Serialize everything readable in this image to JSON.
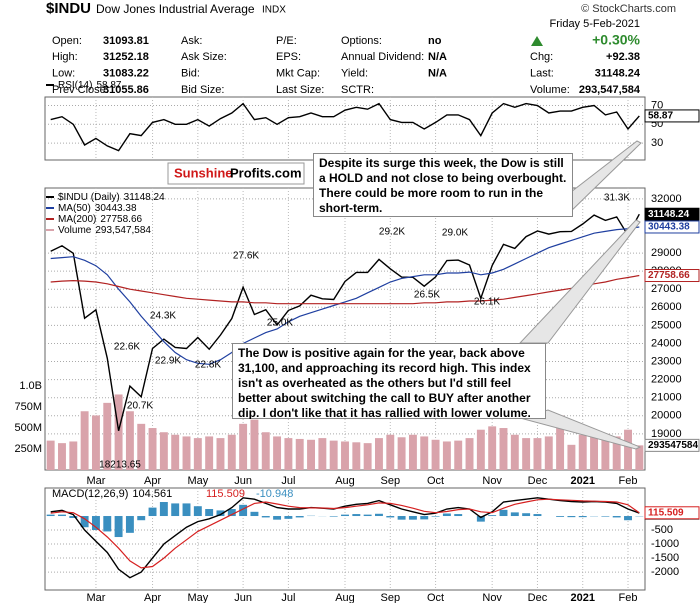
{
  "quote": {
    "symbol": "$INDU",
    "name": "Dow Jones Industrial Average",
    "exchange": "INDX",
    "date": "Friday  5-Feb-2021",
    "source": "© StockCharts.com",
    "change_pct": "+0.30%",
    "rows": [
      [
        {
          "label": "Open:",
          "value": 31093.81
        },
        {
          "label": "Ask:"
        },
        {
          "label": "P/E:"
        },
        {
          "label": "Options:",
          "value": "no"
        }
      ],
      [
        {
          "label": "High:",
          "value": 31252.18
        },
        {
          "label": "Ask Size:"
        },
        {
          "label": "EPS:"
        },
        {
          "label": "Annual Dividend:",
          "value": "N/A"
        },
        {
          "label": "Chg:",
          "value": "+92.38"
        }
      ],
      [
        {
          "label": "Low:",
          "value": 31083.22
        },
        {
          "label": "Bid:"
        },
        {
          "label": "Mkt Cap:"
        },
        {
          "label": "Yield:",
          "value": "N/A"
        },
        {
          "label": "Last:",
          "value": 31148.24
        }
      ],
      [
        {
          "label": "Prev Close:",
          "value": 31055.86
        },
        {
          "label": "Bid Size:"
        },
        {
          "label": "Last Size:"
        },
        {
          "label": "SCTR:"
        },
        {
          "label": "Volume:",
          "value": "293,547,584"
        }
      ]
    ]
  },
  "logo": {
    "part1": "Sunshine",
    "part2": "Profits.com"
  },
  "callouts": [
    "Despite its surge this week, the Dow is still a HOLD and not close to being overbought. There could be more room to run in the short-term.",
    "The Dow is positive again for the year, back above 31,100, and approaching its record high. This index isn't as overheated as the others but I'd still feel better about switching the call to BUY after another dip. I don't like that it has rallied with lower volume."
  ],
  "chart_data": [
    {
      "type": "line",
      "grid": true,
      "legend": "upper left",
      "categories": [
        null,
        null,
        null,
        null,
        "Mar",
        null,
        null,
        null,
        null,
        "Apr",
        null,
        null,
        null,
        "May",
        null,
        null,
        null,
        "Jun",
        null,
        null,
        null,
        "Jul",
        null,
        null,
        null,
        null,
        "Aug",
        null,
        null,
        null,
        "Sep",
        null,
        null,
        null,
        "Oct",
        null,
        null,
        null,
        null,
        "Nov",
        null,
        null,
        null,
        "Dec",
        null,
        null,
        null,
        "2021",
        null,
        null,
        null,
        "Feb",
        null
      ],
      "ylim": [
        17000,
        32600
      ],
      "yticks": [
        32000,
        29000,
        28000,
        27000,
        26000,
        25000,
        24000,
        23000,
        22000,
        21000,
        20000,
        19000
      ],
      "y2lim": [
        0,
        3360000000
      ],
      "y2ticks": [
        {
          "value": 250000000,
          "label": "250M"
        },
        {
          "value": 500000000,
          "label": "500M"
        },
        {
          "value": 750000000,
          "label": "750M"
        },
        {
          "value": 1000000000,
          "label": "1.0B"
        }
      ],
      "series": [
        {
          "name": "$INDU (Daily)",
          "color": "#000000",
          "values": [
            29100,
            29400,
            28990,
            25400,
            25860,
            23180,
            19170,
            21640,
            21050,
            23720,
            24240,
            23780,
            23720,
            24330,
            23680,
            24470,
            25380,
            27110,
            25600,
            25870,
            25020,
            25830,
            26080,
            26670,
            26470,
            26430,
            27430,
            27930,
            27930,
            28650,
            28130,
            27670,
            27660,
            27170,
            27680,
            28590,
            28610,
            28340,
            26500,
            28320,
            29480,
            29260,
            29910,
            30220,
            30050,
            30180,
            30200,
            30610,
            31100,
            30810,
            31000,
            29980,
            31148.24
          ]
        },
        {
          "name": "MA(50)",
          "color": "#1f3fa0",
          "values": [
            28700,
            28750,
            28800,
            28600,
            28300,
            27800,
            27000,
            26300,
            25500,
            24800,
            24100,
            23500,
            23100,
            22900,
            22850,
            23100,
            23500,
            24000,
            24300,
            24600,
            24800,
            25200,
            25500,
            25700,
            25900,
            26100,
            26300,
            26500,
            26800,
            27100,
            27400,
            27600,
            27700,
            27800,
            27800,
            27900,
            27900,
            27950,
            27800,
            27900,
            28100,
            28400,
            28700,
            29000,
            29300,
            29500,
            29700,
            29900,
            30100,
            30200,
            30300,
            30350,
            30443.38
          ]
        },
        {
          "name": "MA(200)",
          "color": "#b22222",
          "values": [
            27400,
            27450,
            27480,
            27450,
            27400,
            27300,
            27150,
            27000,
            26900,
            26800,
            26700,
            26600,
            26500,
            26450,
            26400,
            26350,
            26300,
            26300,
            26250,
            26250,
            26200,
            26200,
            26200,
            26200,
            26200,
            26200,
            26200,
            26200,
            26200,
            26200,
            26200,
            26200,
            26200,
            26250,
            26250,
            26300,
            26300,
            26350,
            26350,
            26400,
            26450,
            26550,
            26650,
            26750,
            26850,
            26950,
            27050,
            27150,
            27300,
            27400,
            27550,
            27650,
            27758.66
          ]
        },
        {
          "name": "Volume",
          "type": "bar",
          "axis": "y2",
          "color": "#d9a3ab",
          "values": [
            350000000,
            320000000,
            340000000,
            700000000,
            650000000,
            800000000,
            900000000,
            700000000,
            550000000,
            500000000,
            450000000,
            420000000,
            400000000,
            380000000,
            400000000,
            380000000,
            420000000,
            550000000,
            600000000,
            450000000,
            400000000,
            380000000,
            370000000,
            360000000,
            380000000,
            350000000,
            340000000,
            330000000,
            320000000,
            380000000,
            420000000,
            390000000,
            420000000,
            400000000,
            360000000,
            340000000,
            350000000,
            380000000,
            480000000,
            520000000,
            500000000,
            420000000,
            380000000,
            380000000,
            400000000,
            650000000,
            300000000,
            420000000,
            450000000,
            430000000,
            400000000,
            480000000,
            293547584
          ]
        }
      ],
      "annotations": [
        {
          "value": 29200,
          "label": "29.2K"
        },
        {
          "value": 29000,
          "label": "29.0K"
        },
        {
          "value": 27600,
          "label": "27.6K"
        },
        {
          "value": 24300,
          "label": "24.3K"
        },
        {
          "value": 22600,
          "label": "22.6K"
        },
        {
          "value": 22900,
          "label": "22.9K"
        },
        {
          "value": 22800,
          "label": "22.8K"
        },
        {
          "value": 25000,
          "label": "25.0K"
        },
        {
          "value": 26500,
          "label": "26.5K"
        },
        {
          "value": 26100,
          "label": "26.1K"
        },
        {
          "value": 31300,
          "label": "31.3K"
        },
        {
          "value": 20700,
          "label": "20.7K"
        },
        {
          "value": 18213.65,
          "label": "18213.65"
        }
      ]
    },
    {
      "type": "line",
      "grid": true,
      "legend": "upper left",
      "ylim": [
        12,
        79
      ],
      "yticks": [
        70,
        50,
        30
      ],
      "series": [
        {
          "name": "RSI(14)",
          "color": "#000000",
          "values": [
            55,
            58,
            50,
            28,
            35,
            27,
            22,
            40,
            38,
            52,
            55,
            50,
            50,
            55,
            48,
            56,
            62,
            72,
            55,
            57,
            50,
            57,
            58,
            62,
            58,
            58,
            65,
            68,
            66,
            72,
            55,
            52,
            52,
            45,
            52,
            60,
            60,
            55,
            38,
            62,
            72,
            68,
            72,
            70,
            62,
            64,
            64,
            68,
            70,
            60,
            63,
            45,
            58.87
          ]
        }
      ]
    },
    {
      "type": "line",
      "grid": true,
      "legend": "upper left",
      "ylim": [
        -2640,
        1000
      ],
      "yticks": [
        -500,
        -1000,
        -1500,
        -2000
      ],
      "series": [
        {
          "name": "MACD(12,26,9)",
          "color": "#000000",
          "values": [
            150,
            200,
            50,
            -500,
            -900,
            -1300,
            -1900,
            -2200,
            -2000,
            -1500,
            -1000,
            -700,
            -400,
            -200,
            -100,
            50,
            300,
            650,
            600,
            450,
            300,
            250,
            250,
            300,
            280,
            250,
            350,
            420,
            450,
            550,
            400,
            250,
            150,
            50,
            100,
            250,
            300,
            250,
            -50,
            150,
            500,
            550,
            600,
            650,
            600,
            550,
            520,
            500,
            520,
            500,
            450,
            250,
            104.561
          ]
        },
        {
          "color": "#d62020",
          "values": [
            100,
            150,
            120,
            -100,
            -400,
            -750,
            -1150,
            -1600,
            -1850,
            -1800,
            -1500,
            -1150,
            -850,
            -550,
            -350,
            -150,
            50,
            250,
            450,
            500,
            430,
            350,
            300,
            290,
            285,
            270,
            300,
            350,
            400,
            470,
            450,
            380,
            280,
            170,
            120,
            160,
            230,
            250,
            150,
            120,
            280,
            420,
            500,
            580,
            600,
            580,
            560,
            540,
            530,
            520,
            500,
            400,
            115.509
          ]
        },
        {
          "type": "bar",
          "color": "#3a8fc0",
          "values": [
            50,
            50,
            -70,
            -400,
            -500,
            -550,
            -750,
            -600,
            -150,
            300,
            500,
            450,
            450,
            350,
            250,
            200,
            250,
            400,
            150,
            -50,
            -130,
            -100,
            -50,
            10,
            -5,
            -20,
            50,
            70,
            50,
            80,
            -50,
            -130,
            -130,
            -120,
            -20,
            90,
            70,
            0,
            -200,
            30,
            220,
            130,
            100,
            70,
            0,
            -30,
            -40,
            -40,
            -10,
            -20,
            -50,
            -150,
            -10.948
          ]
        }
      ]
    }
  ]
}
